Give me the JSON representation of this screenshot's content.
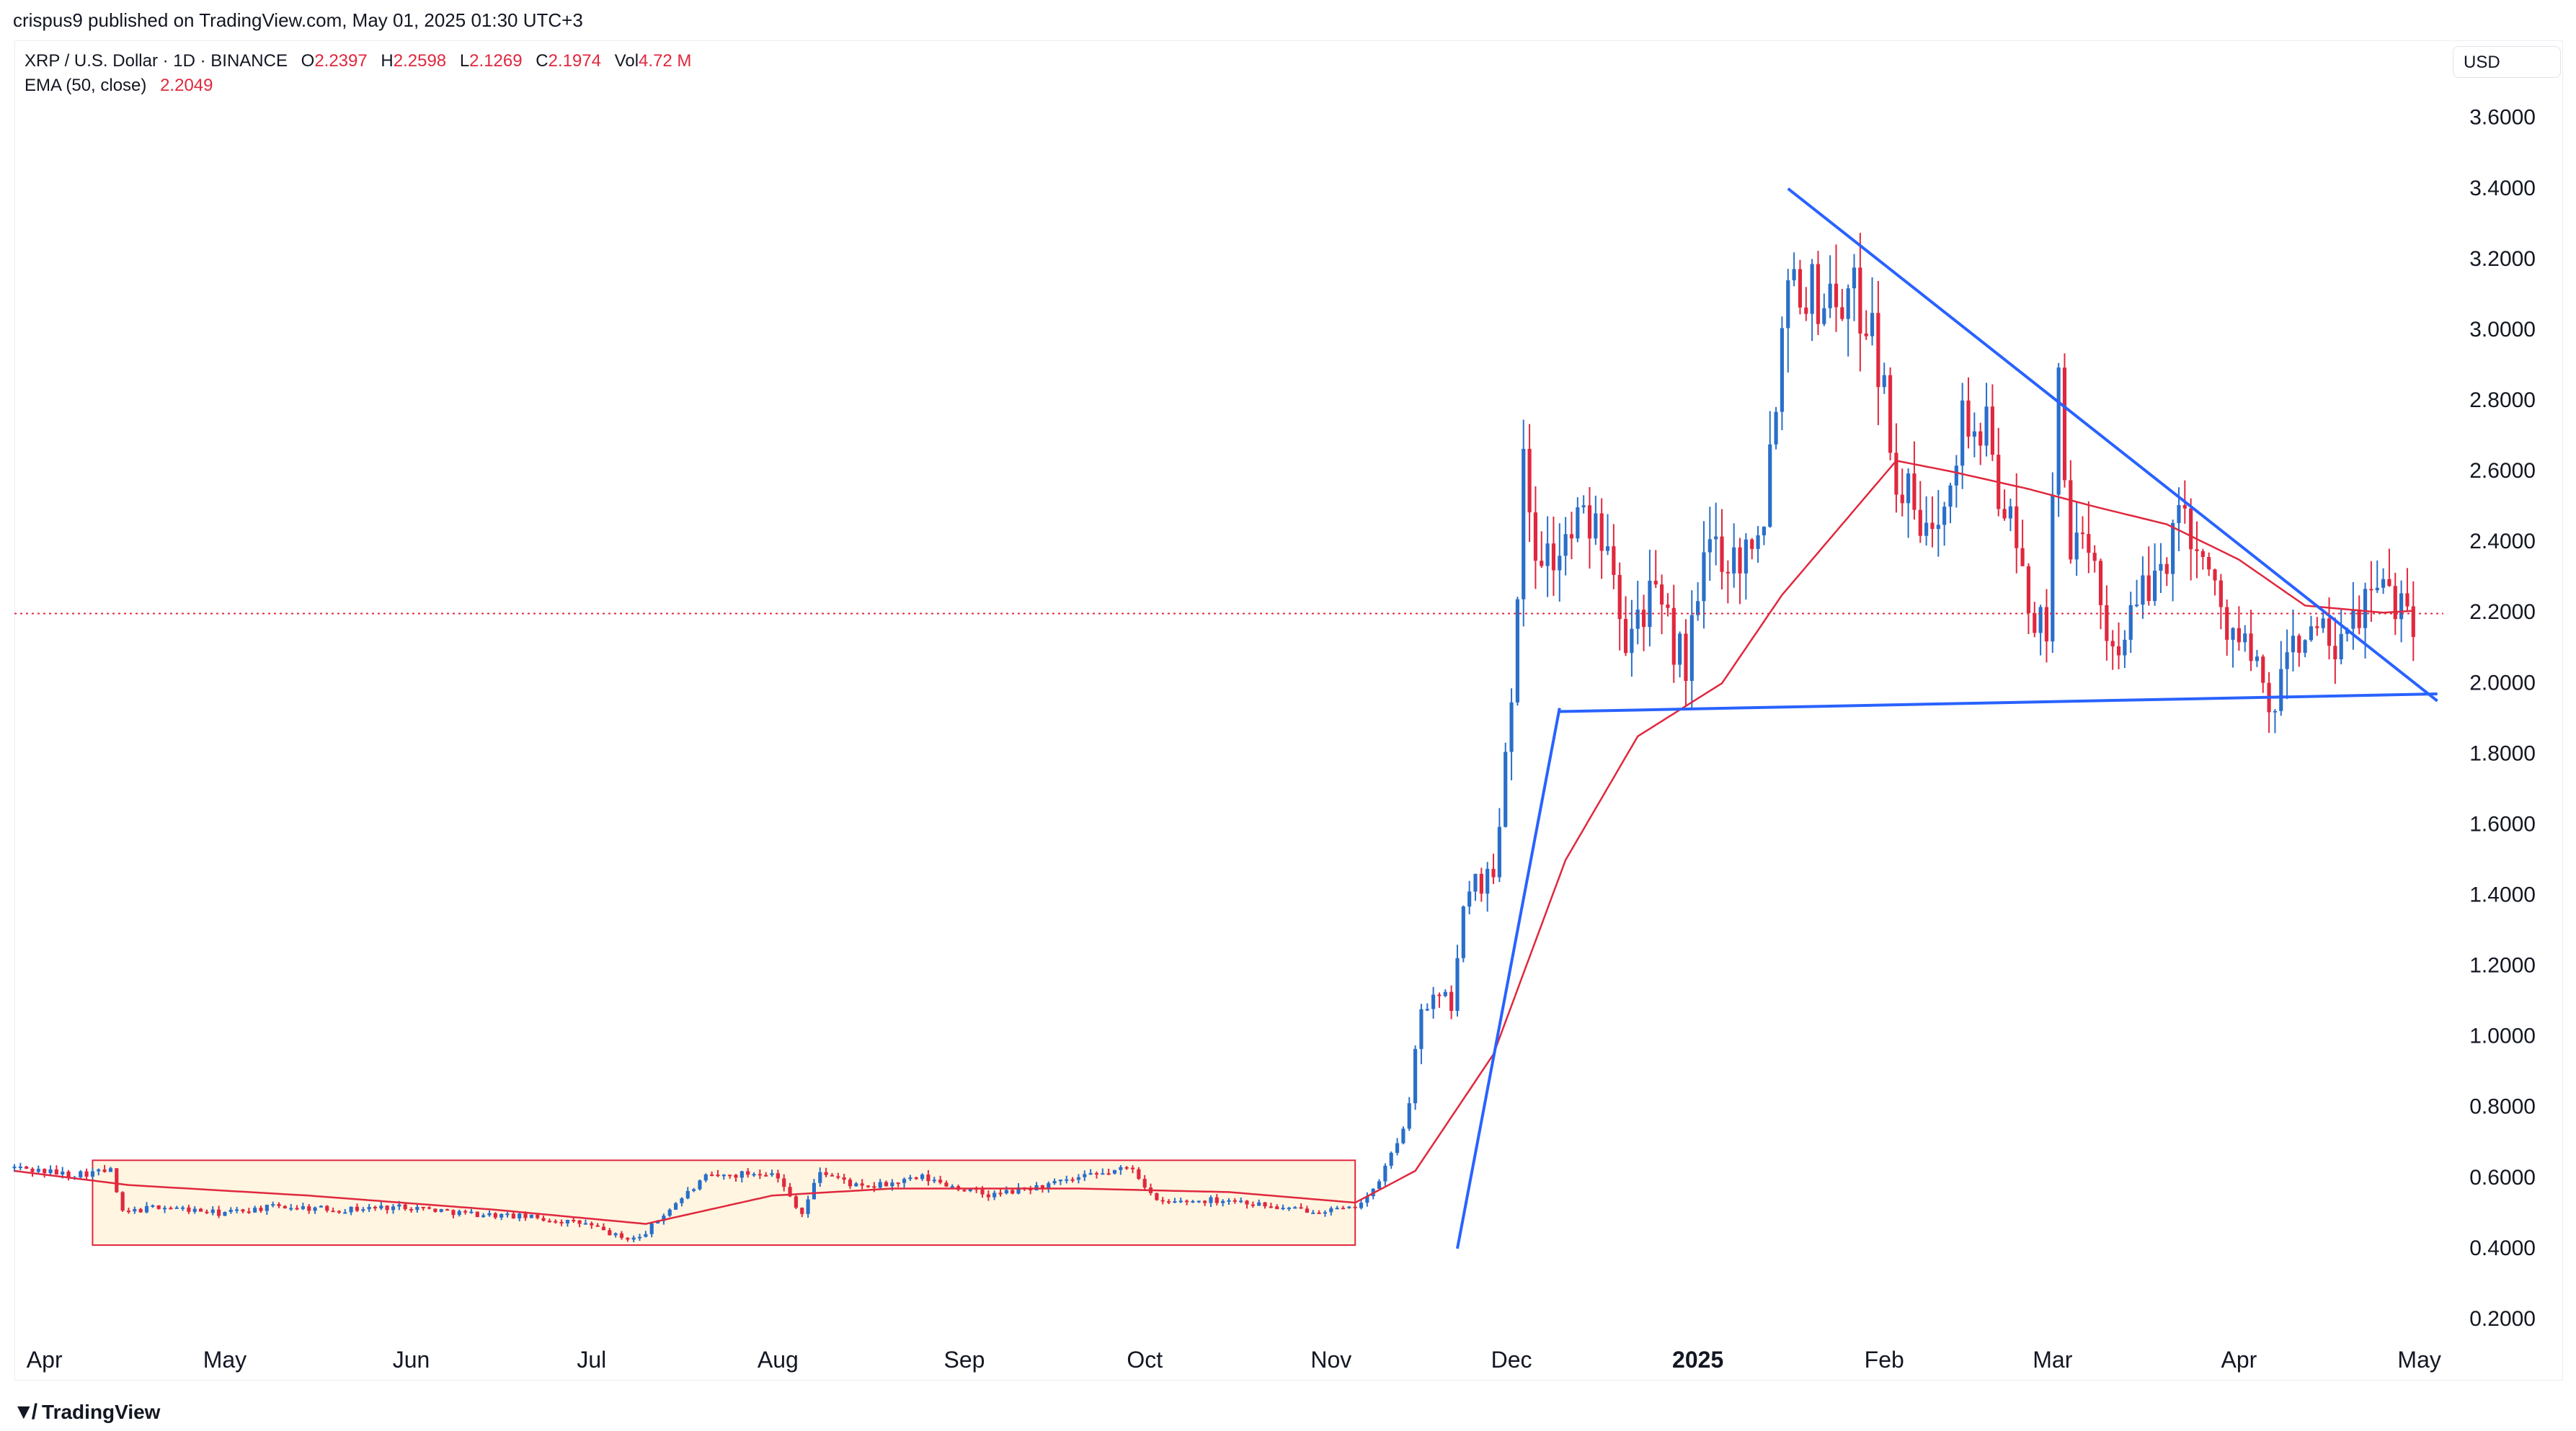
{
  "header": {
    "published_line": "crispus9 published on TradingView.com, May 01, 2025 01:30 UTC+3"
  },
  "legend": {
    "symbol": "XRP / U.S. Dollar · 1D · BINANCE",
    "o_label": "O",
    "o_value": "2.2397",
    "h_label": "H",
    "h_value": "2.2598",
    "l_label": "L",
    "l_value": "2.1269",
    "c_label": "C",
    "c_value": "2.1974",
    "vol_label": "Vol",
    "vol_value": "4.72 M",
    "ema_label": "EMA (50, close)",
    "ema_value": "2.2049"
  },
  "currency": "USD",
  "footer": {
    "brand": "TradingView",
    "logo_icon": "tradingview-logo-icon"
  },
  "colors": {
    "up": "#2a6fc9",
    "down": "#e0283e",
    "ema": "#e0283e",
    "trendline": "#2962ff",
    "box_fill": "#fff5e0",
    "box_border": "#e0283e",
    "current_price_line": "#e0283e"
  },
  "chart_data": {
    "type": "candlestick",
    "yticks": [
      "3.6000",
      "3.4000",
      "3.2000",
      "3.0000",
      "2.8000",
      "2.6000",
      "2.4000",
      "2.2000",
      "2.0000",
      "1.8000",
      "1.6000",
      "1.4000",
      "1.2000",
      "1.0000",
      "0.8000",
      "0.6000",
      "0.4000",
      "0.2000"
    ],
    "ylim": [
      0.1,
      3.73
    ],
    "xticks": [
      "Apr",
      "May",
      "Jun",
      "Jul",
      "Aug",
      "Sep",
      "Oct",
      "Nov",
      "Dec",
      "2025",
      "Feb",
      "Mar",
      "Apr",
      "May"
    ],
    "xtick_dates": [
      "2024-04-01",
      "2024-05-01",
      "2024-06-01",
      "2024-07-01",
      "2024-08-01",
      "2024-09-01",
      "2024-10-01",
      "2024-11-01",
      "2024-12-01",
      "2025-01-01",
      "2025-02-01",
      "2025-03-01",
      "2025-04-01",
      "2025-05-01"
    ],
    "xlim": [
      "2024-03-27",
      "2025-05-05"
    ],
    "current_price": 2.1974,
    "anchors": [
      [
        "2024-03-27",
        0.63
      ],
      [
        "2024-04-05",
        0.61
      ],
      [
        "2024-04-12",
        0.62
      ],
      [
        "2024-04-14",
        0.5
      ],
      [
        "2024-04-20",
        0.52
      ],
      [
        "2024-04-30",
        0.5
      ],
      [
        "2024-05-10",
        0.52
      ],
      [
        "2024-05-20",
        0.51
      ],
      [
        "2024-05-31",
        0.52
      ],
      [
        "2024-06-10",
        0.5
      ],
      [
        "2024-06-20",
        0.49
      ],
      [
        "2024-06-30",
        0.47
      ],
      [
        "2024-07-06",
        0.43
      ],
      [
        "2024-07-09",
        0.43
      ],
      [
        "2024-07-15",
        0.53
      ],
      [
        "2024-07-20",
        0.6
      ],
      [
        "2024-07-31",
        0.62
      ],
      [
        "2024-08-05",
        0.5
      ],
      [
        "2024-08-08",
        0.62
      ],
      [
        "2024-08-15",
        0.57
      ],
      [
        "2024-08-25",
        0.6
      ],
      [
        "2024-09-05",
        0.55
      ],
      [
        "2024-09-15",
        0.58
      ],
      [
        "2024-09-29",
        0.63
      ],
      [
        "2024-10-03",
        0.53
      ],
      [
        "2024-10-15",
        0.54
      ],
      [
        "2024-10-25",
        0.51
      ],
      [
        "2024-11-04",
        0.51
      ],
      [
        "2024-11-08",
        0.56
      ],
      [
        "2024-11-12",
        0.7
      ],
      [
        "2024-11-14",
        0.8
      ],
      [
        "2024-11-16",
        1.1
      ],
      [
        "2024-11-21",
        1.1
      ],
      [
        "2024-11-24",
        1.45
      ],
      [
        "2024-11-28",
        1.45
      ],
      [
        "2024-12-01",
        2.0
      ],
      [
        "2024-12-03",
        2.6
      ],
      [
        "2024-12-05",
        2.4
      ],
      [
        "2024-12-08",
        2.35
      ],
      [
        "2024-12-12",
        2.45
      ],
      [
        "2024-12-17",
        2.45
      ],
      [
        "2024-12-20",
        2.15
      ],
      [
        "2024-12-24",
        2.25
      ],
      [
        "2024-12-30",
        2.05
      ],
      [
        "2025-01-03",
        2.4
      ],
      [
        "2025-01-08",
        2.35
      ],
      [
        "2025-01-12",
        2.5
      ],
      [
        "2025-01-15",
        3.0
      ],
      [
        "2025-01-16",
        3.2
      ],
      [
        "2025-01-20",
        3.1
      ],
      [
        "2025-01-25",
        3.1
      ],
      [
        "2025-01-30",
        3.05
      ],
      [
        "2025-02-01",
        2.8
      ],
      [
        "2025-02-03",
        2.6
      ],
      [
        "2025-02-08",
        2.4
      ],
      [
        "2025-02-14",
        2.75
      ],
      [
        "2025-02-18",
        2.7
      ],
      [
        "2025-02-24",
        2.3
      ],
      [
        "2025-02-28",
        2.1
      ],
      [
        "2025-03-02",
        2.9
      ],
      [
        "2025-03-04",
        2.4
      ],
      [
        "2025-03-08",
        2.3
      ],
      [
        "2025-03-11",
        2.1
      ],
      [
        "2025-03-18",
        2.3
      ],
      [
        "2025-03-23",
        2.5
      ],
      [
        "2025-03-29",
        2.2
      ],
      [
        "2025-04-02",
        2.1
      ],
      [
        "2025-04-07",
        1.9
      ],
      [
        "2025-04-09",
        2.1
      ],
      [
        "2025-04-13",
        2.15
      ],
      [
        "2025-04-18",
        2.08
      ],
      [
        "2025-04-22",
        2.25
      ],
      [
        "2025-04-28",
        2.25
      ],
      [
        "2025-04-30",
        2.2
      ]
    ],
    "ema_anchors": [
      [
        "2024-03-27",
        0.62
      ],
      [
        "2024-04-15",
        0.58
      ],
      [
        "2024-05-15",
        0.55
      ],
      [
        "2024-06-15",
        0.51
      ],
      [
        "2024-07-10",
        0.47
      ],
      [
        "2024-07-31",
        0.55
      ],
      [
        "2024-08-20",
        0.57
      ],
      [
        "2024-09-20",
        0.57
      ],
      [
        "2024-10-15",
        0.56
      ],
      [
        "2024-11-05",
        0.53
      ],
      [
        "2024-11-15",
        0.62
      ],
      [
        "2024-11-28",
        0.95
      ],
      [
        "2024-12-10",
        1.5
      ],
      [
        "2024-12-22",
        1.85
      ],
      [
        "2025-01-05",
        2.0
      ],
      [
        "2025-01-15",
        2.25
      ],
      [
        "2025-01-25",
        2.45
      ],
      [
        "2025-02-03",
        2.63
      ],
      [
        "2025-02-12",
        2.6
      ],
      [
        "2025-02-25",
        2.55
      ],
      [
        "2025-03-08",
        2.5
      ],
      [
        "2025-03-20",
        2.45
      ],
      [
        "2025-04-01",
        2.35
      ],
      [
        "2025-04-12",
        2.22
      ],
      [
        "2025-04-25",
        2.2
      ],
      [
        "2025-04-30",
        2.205
      ]
    ],
    "annotations": {
      "consolidation_box": {
        "from": "2024-04-09",
        "to": "2024-11-05",
        "low": 0.41,
        "high": 0.65
      },
      "trendlines": [
        {
          "from": [
            "2024-11-22",
            0.4
          ],
          "to": [
            "2024-12-09",
            1.93
          ]
        },
        {
          "from": [
            "2024-12-09",
            1.92
          ],
          "to": [
            "2025-05-04",
            1.97
          ]
        },
        {
          "from": [
            "2025-01-16",
            3.4
          ],
          "to": [
            "2025-05-04",
            1.95
          ]
        }
      ]
    }
  }
}
